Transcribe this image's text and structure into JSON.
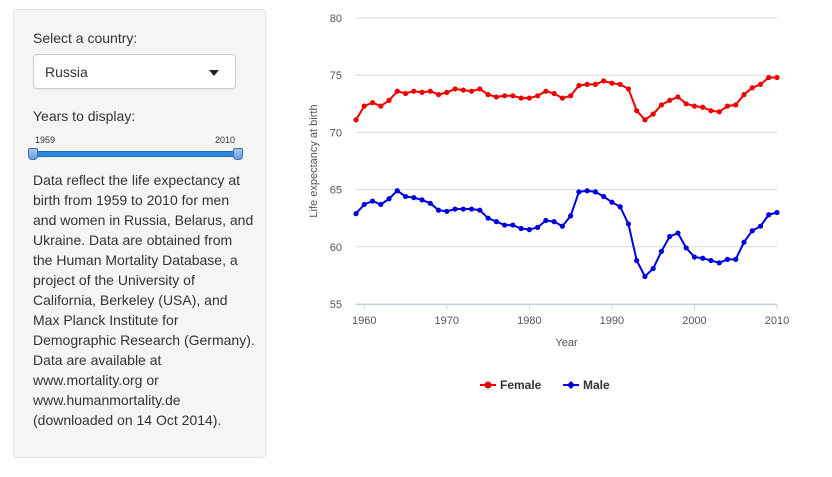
{
  "sidebar": {
    "country_label": "Select a country:",
    "country_value": "Russia",
    "years_label": "Years to display:",
    "slider_min_label": "1959",
    "slider_max_label": "2010",
    "slider_from": 1959,
    "slider_to": 2010,
    "description": "Data reflect the life expectancy at birth from 1959 to 2010 for men and women in Russia, Belarus, and Ukraine. Data are obtained from the Human Mortality Database, a project of the University of California, Berkeley (USA), and Max Planck Institute for Demographic Research (Germany). Data are available at www.mortality.org or www.humanmortality.de (downloaded on 14 Oct 2014)."
  },
  "chart_data": {
    "type": "line",
    "xlabel": "Year",
    "ylabel": "Life expectancy at birth",
    "xlim": [
      1959,
      2010
    ],
    "ylim": [
      55,
      80
    ],
    "x_ticks": [
      "1960",
      "1970",
      "1980",
      "1990",
      "2000",
      "2010"
    ],
    "y_ticks": [
      "55",
      "60",
      "65",
      "70",
      "75",
      "80"
    ],
    "grid": true,
    "legend_position": "bottom",
    "x": [
      1959,
      1960,
      1961,
      1962,
      1963,
      1964,
      1965,
      1966,
      1967,
      1968,
      1969,
      1970,
      1971,
      1972,
      1973,
      1974,
      1975,
      1976,
      1977,
      1978,
      1979,
      1980,
      1981,
      1982,
      1983,
      1984,
      1985,
      1986,
      1987,
      1988,
      1989,
      1990,
      1991,
      1992,
      1993,
      1994,
      1995,
      1996,
      1997,
      1998,
      1999,
      2000,
      2001,
      2002,
      2003,
      2004,
      2005,
      2006,
      2007,
      2008,
      2009,
      2010
    ],
    "series": [
      {
        "name": "Female",
        "color": "#ee0000",
        "values": [
          71.1,
          72.3,
          72.6,
          72.3,
          72.8,
          73.6,
          73.4,
          73.6,
          73.5,
          73.6,
          73.3,
          73.5,
          73.8,
          73.7,
          73.6,
          73.8,
          73.3,
          73.1,
          73.2,
          73.2,
          73.0,
          73.0,
          73.2,
          73.6,
          73.4,
          73.0,
          73.2,
          74.1,
          74.2,
          74.2,
          74.5,
          74.3,
          74.2,
          73.8,
          71.9,
          71.1,
          71.6,
          72.4,
          72.8,
          73.1,
          72.5,
          72.3,
          72.2,
          71.9,
          71.8,
          72.3,
          72.4,
          73.3,
          73.9,
          74.2,
          74.8,
          74.8
        ]
      },
      {
        "name": "Male",
        "color": "#0000dd",
        "values": [
          62.9,
          63.7,
          64.0,
          63.7,
          64.2,
          64.9,
          64.4,
          64.3,
          64.1,
          63.8,
          63.2,
          63.1,
          63.3,
          63.3,
          63.3,
          63.2,
          62.5,
          62.2,
          61.9,
          61.9,
          61.6,
          61.5,
          61.7,
          62.3,
          62.2,
          61.8,
          62.7,
          64.8,
          64.9,
          64.8,
          64.4,
          63.9,
          63.5,
          62.0,
          58.8,
          57.4,
          58.1,
          59.6,
          60.9,
          61.2,
          59.9,
          59.1,
          59.0,
          58.8,
          58.6,
          58.9,
          58.9,
          60.4,
          61.4,
          61.8,
          62.8,
          63.0
        ]
      }
    ]
  }
}
